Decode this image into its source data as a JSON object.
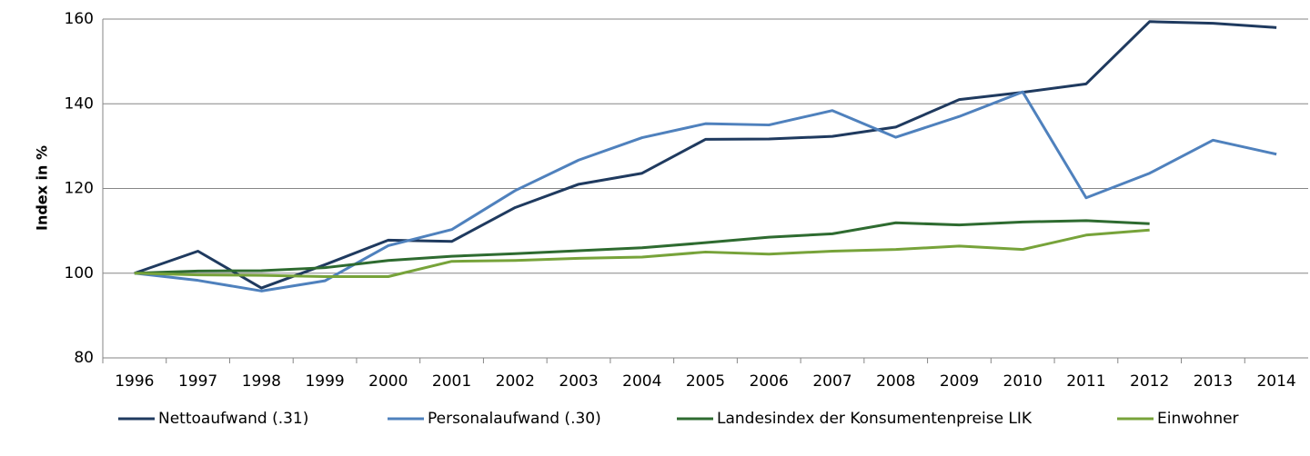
{
  "chart_data": {
    "type": "line",
    "y_label": "Index in %",
    "categories": [
      "1996",
      "1997",
      "1998",
      "1999",
      "2000",
      "2001",
      "2002",
      "2003",
      "2004",
      "2005",
      "2006",
      "2007",
      "2008",
      "2009",
      "2010",
      "2011",
      "2012",
      "2013",
      "2014"
    ],
    "series": [
      {
        "name": "Nettoaufwand (.31)",
        "color": "#1f3a5f",
        "values": [
          100,
          105.2,
          96.5,
          102,
          107.8,
          107.5,
          115.5,
          121,
          123.6,
          131.6,
          131.7,
          132.3,
          134.5,
          141,
          142.7,
          144.7,
          159.4,
          159,
          158
        ]
      },
      {
        "name": "Personalaufwand (.30)",
        "color": "#4f81bd",
        "values": [
          100,
          98.3,
          95.8,
          98.2,
          106.5,
          110.3,
          119.5,
          126.7,
          132,
          135.3,
          135,
          138.4,
          132.1,
          137,
          142.8,
          117.8,
          123.6,
          131.4,
          128.1
        ]
      },
      {
        "name": "Landesindex der Konsumentenpreise LIK",
        "color": "#2e6b30",
        "values": [
          100,
          100.5,
          100.6,
          101.3,
          103,
          104,
          104.6,
          105.3,
          106,
          107.2,
          108.5,
          109.3,
          111.9,
          111.4,
          112.1,
          112.4,
          111.7,
          null,
          null
        ]
      },
      {
        "name": "Einwohner",
        "color": "#77a33a",
        "values": [
          100,
          99.6,
          99.5,
          99.2,
          99.2,
          102.8,
          103,
          103.5,
          103.8,
          105,
          104.5,
          105.2,
          105.6,
          106.4,
          105.6,
          109,
          110.2,
          null,
          null
        ]
      }
    ],
    "ylim": [
      80,
      160
    ],
    "yticks": [
      80,
      100,
      120,
      140,
      160
    ],
    "grid": true,
    "legend": "bottom"
  }
}
